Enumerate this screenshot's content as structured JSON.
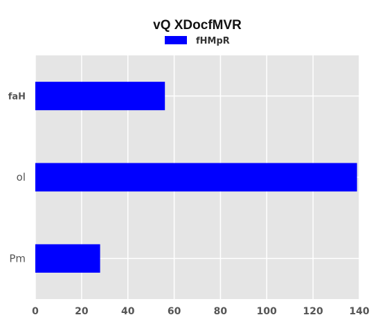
{
  "chart_data": {
    "type": "bar",
    "orientation": "horizontal",
    "title": "vQ XDocfMVR",
    "categories": [
      "faH",
      "ol",
      "Pm"
    ],
    "series": [
      {
        "name": "fHMpR",
        "values": [
          56,
          139,
          28
        ],
        "color": "#0000ff"
      }
    ],
    "xlim": [
      0,
      140
    ],
    "xticks": [
      0,
      20,
      40,
      60,
      80,
      100,
      120,
      140
    ],
    "xlabel": "",
    "ylabel": "",
    "grid": true,
    "legend": "top-center",
    "style": {
      "plot_background": "#e5e5e5",
      "grid_color": "#ffffff"
    }
  }
}
